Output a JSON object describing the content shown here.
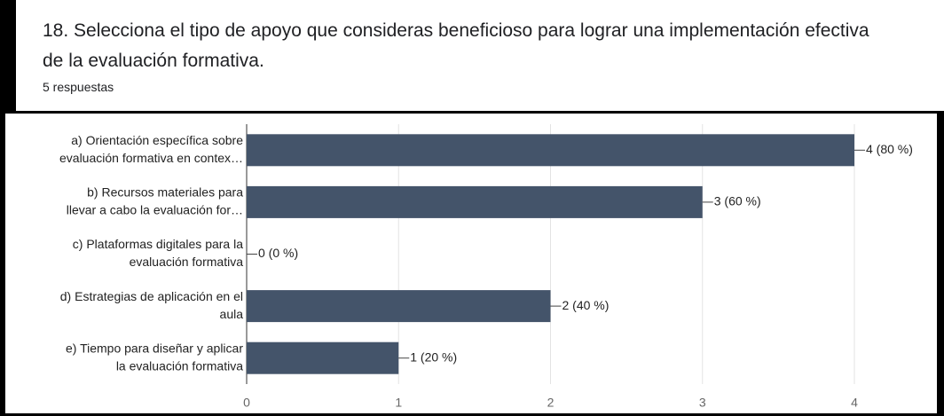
{
  "chart_data": {
    "type": "barh",
    "title": "18. Selecciona el tipo de apoyo que consideras beneficioso para lograr una implementación efectiva de la evaluación formativa.",
    "subtitle": "5 respuestas",
    "categories": [
      [
        "a) Orientación específica sobre",
        "evaluación formativa en contex…"
      ],
      [
        "b) Recursos materiales para",
        "llevar a cabo la evaluación for…"
      ],
      [
        "c) Plataformas digitales para la",
        "evaluación formativa"
      ],
      [
        "d) Estrategias de aplicación en el",
        "aula"
      ],
      [
        "e) Tiempo para diseñar y aplicar",
        "la evaluación formativa"
      ]
    ],
    "values": [
      4,
      3,
      0,
      2,
      1
    ],
    "value_labels": [
      "4 (80 %)",
      "3 (60 %)",
      "0 (0 %)",
      "2 (40 %)",
      "1 (20 %)"
    ],
    "color": "#44546a",
    "xlim": [
      0,
      4
    ],
    "xticks": [
      0,
      1,
      2,
      3,
      4
    ],
    "grid": true
  }
}
